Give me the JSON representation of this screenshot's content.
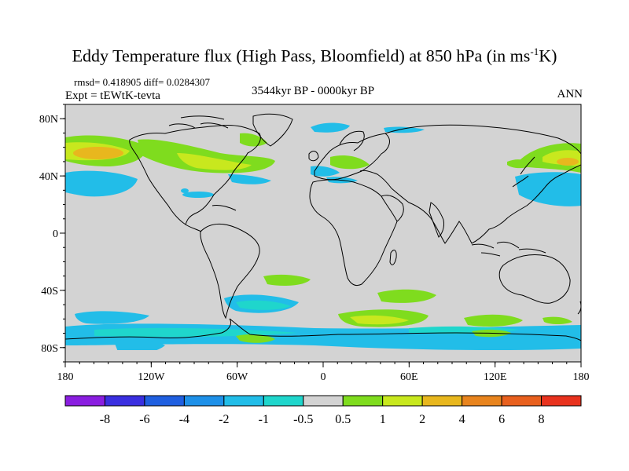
{
  "title": {
    "main": "Eddy Temperature flux (High Pass, Bloomfield) at 850 hPa (in ms",
    "sup": "-1",
    "tail": "K)"
  },
  "stats": "rmsd= 0.418905  diff= 0.0284307",
  "expt": "Expt = tEWtK-tevta",
  "period": "3544kyr BP - 0000kyr BP",
  "season": "ANN",
  "lat_ticks": [
    "80N",
    "40N",
    "0",
    "40S",
    "80S"
  ],
  "lon_ticks": [
    "180",
    "120W",
    "60W",
    "0",
    "60E",
    "120E",
    "180"
  ],
  "colorbar": {
    "labels": [
      "-8",
      "-6",
      "-4",
      "-2",
      "-1",
      "-0.5",
      "0.5",
      "1",
      "2",
      "4",
      "6",
      "8"
    ],
    "colors": [
      "#8a1ee0",
      "#3a2fe0",
      "#1f5fe0",
      "#1e90e8",
      "#22bde8",
      "#1fd6cc",
      "#d3d3d3",
      "#7fdc1e",
      "#c8e81e",
      "#e8b71e",
      "#e8841e",
      "#e8601e",
      "#e8321e"
    ]
  },
  "colors": {
    "ocean_land_background": "#d3d3d3",
    "coastline": "#000000"
  }
}
